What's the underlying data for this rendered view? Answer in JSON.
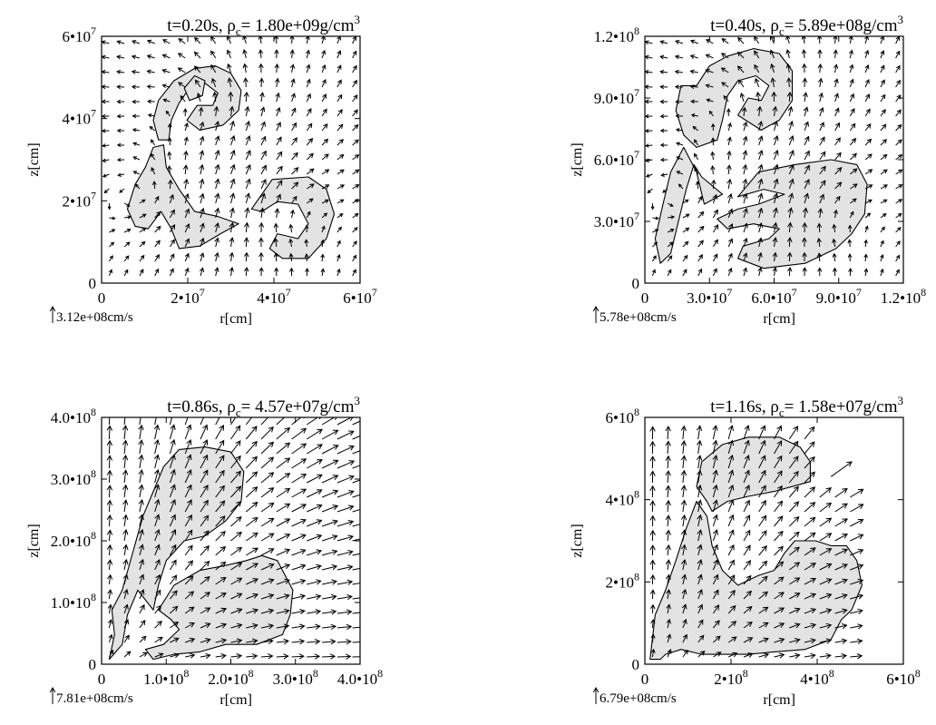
{
  "chart_data": [
    {
      "type": "scatter",
      "title": "t=0.20s, ρc= 1.80e+09g/cm3",
      "title_parts": {
        "time": "t=0.20s,",
        "rho": "ρ",
        "rho_sub": "c",
        "value": "= 1.80e+09g/cm",
        "unit_sup": "3"
      },
      "xlabel": "r[cm]",
      "ylabel": "z[cm]",
      "xlim": [
        0,
        60000000
      ],
      "ylim": [
        0,
        60000000
      ],
      "xticks": [
        {
          "v": 0,
          "label": "0"
        },
        {
          "v": 20000000,
          "label": "2•10",
          "exp": "7"
        },
        {
          "v": 40000000,
          "label": "4•10",
          "exp": "7"
        },
        {
          "v": 60000000,
          "label": "6•10",
          "exp": "7"
        }
      ],
      "yticks": [
        {
          "v": 0,
          "label": "0"
        },
        {
          "v": 20000000,
          "label": "2•10",
          "exp": "7"
        },
        {
          "v": 40000000,
          "label": "4•10",
          "exp": "7"
        },
        {
          "v": 60000000,
          "label": "6•10",
          "exp": "7"
        }
      ],
      "velocity_scale": "3.12e+08cm/s",
      "shaded_regions": [
        [
          [
            0.22,
            0.58
          ],
          [
            0.2,
            0.66
          ],
          [
            0.22,
            0.74
          ],
          [
            0.28,
            0.82
          ],
          [
            0.36,
            0.87
          ],
          [
            0.44,
            0.88
          ],
          [
            0.5,
            0.85
          ],
          [
            0.54,
            0.78
          ],
          [
            0.53,
            0.7
          ],
          [
            0.47,
            0.64
          ],
          [
            0.38,
            0.62
          ],
          [
            0.33,
            0.66
          ],
          [
            0.37,
            0.72
          ],
          [
            0.43,
            0.72
          ],
          [
            0.45,
            0.77
          ],
          [
            0.4,
            0.81
          ],
          [
            0.34,
            0.79
          ],
          [
            0.3,
            0.73
          ],
          [
            0.27,
            0.66
          ],
          [
            0.26,
            0.58
          ]
        ],
        [
          [
            0.34,
            0.74
          ],
          [
            0.32,
            0.79
          ],
          [
            0.36,
            0.84
          ],
          [
            0.4,
            0.82
          ],
          [
            0.39,
            0.76
          ]
        ],
        [
          [
            0.2,
            0.55
          ],
          [
            0.17,
            0.47
          ],
          [
            0.13,
            0.4
          ],
          [
            0.1,
            0.3
          ],
          [
            0.13,
            0.23
          ],
          [
            0.18,
            0.22
          ],
          [
            0.23,
            0.29
          ],
          [
            0.27,
            0.22
          ],
          [
            0.3,
            0.14
          ],
          [
            0.38,
            0.15
          ],
          [
            0.46,
            0.2
          ],
          [
            0.53,
            0.24
          ],
          [
            0.45,
            0.27
          ],
          [
            0.36,
            0.29
          ],
          [
            0.3,
            0.38
          ],
          [
            0.25,
            0.47
          ],
          [
            0.24,
            0.56
          ]
        ],
        [
          [
            0.58,
            0.3
          ],
          [
            0.66,
            0.42
          ],
          [
            0.8,
            0.43
          ],
          [
            0.87,
            0.38
          ],
          [
            0.9,
            0.28
          ],
          [
            0.87,
            0.18
          ],
          [
            0.8,
            0.1
          ],
          [
            0.7,
            0.1
          ],
          [
            0.65,
            0.14
          ],
          [
            0.68,
            0.2
          ],
          [
            0.76,
            0.18
          ],
          [
            0.8,
            0.24
          ],
          [
            0.76,
            0.32
          ],
          [
            0.68,
            0.33
          ],
          [
            0.62,
            0.29
          ]
        ]
      ],
      "field": "swirl"
    },
    {
      "type": "scatter",
      "title": "t=0.40s, ρc= 5.89e+08g/cm3",
      "title_parts": {
        "time": "t=0.40s,",
        "rho": "ρ",
        "rho_sub": "c",
        "value": "= 5.89e+08g/cm",
        "unit_sup": "3"
      },
      "xlabel": "r[cm]",
      "ylabel": "z[cm]",
      "xlim": [
        0,
        120000000
      ],
      "ylim": [
        0,
        120000000
      ],
      "xticks": [
        {
          "v": 0,
          "label": "0"
        },
        {
          "v": 30000000,
          "label": "3.0•10",
          "exp": "7"
        },
        {
          "v": 60000000,
          "label": "6.0•10",
          "exp": "7"
        },
        {
          "v": 90000000,
          "label": "9.0•10",
          "exp": "7"
        },
        {
          "v": 120000000,
          "label": "1.2•10",
          "exp": "8"
        }
      ],
      "yticks": [
        {
          "v": 0,
          "label": "0"
        },
        {
          "v": 30000000,
          "label": "3.0•10",
          "exp": "7"
        },
        {
          "v": 60000000,
          "label": "6.0•10",
          "exp": "7"
        },
        {
          "v": 90000000,
          "label": "9.0•10",
          "exp": "7"
        },
        {
          "v": 120000000,
          "label": "1.2•10",
          "exp": "8"
        }
      ],
      "velocity_scale": "5.78e+08cm/s",
      "shaded_regions": [
        [
          [
            0.2,
            0.55
          ],
          [
            0.15,
            0.6
          ],
          [
            0.12,
            0.7
          ],
          [
            0.14,
            0.8
          ],
          [
            0.2,
            0.8
          ],
          [
            0.25,
            0.88
          ],
          [
            0.32,
            0.92
          ],
          [
            0.42,
            0.95
          ],
          [
            0.52,
            0.93
          ],
          [
            0.57,
            0.86
          ],
          [
            0.57,
            0.74
          ],
          [
            0.52,
            0.66
          ],
          [
            0.45,
            0.62
          ],
          [
            0.36,
            0.68
          ],
          [
            0.4,
            0.75
          ],
          [
            0.45,
            0.74
          ],
          [
            0.48,
            0.8
          ],
          [
            0.43,
            0.84
          ],
          [
            0.36,
            0.82
          ],
          [
            0.32,
            0.76
          ],
          [
            0.3,
            0.66
          ],
          [
            0.28,
            0.58
          ]
        ],
        [
          [
            0.15,
            0.55
          ],
          [
            0.1,
            0.45
          ],
          [
            0.07,
            0.32
          ],
          [
            0.04,
            0.18
          ],
          [
            0.06,
            0.08
          ],
          [
            0.1,
            0.12
          ],
          [
            0.13,
            0.25
          ],
          [
            0.16,
            0.38
          ],
          [
            0.19,
            0.48
          ],
          [
            0.22,
            0.43
          ],
          [
            0.3,
            0.36
          ],
          [
            0.23,
            0.32
          ],
          [
            0.2,
            0.45
          ]
        ],
        [
          [
            0.36,
            0.35
          ],
          [
            0.44,
            0.45
          ],
          [
            0.58,
            0.48
          ],
          [
            0.72,
            0.5
          ],
          [
            0.82,
            0.48
          ],
          [
            0.86,
            0.4
          ],
          [
            0.85,
            0.28
          ],
          [
            0.8,
            0.2
          ],
          [
            0.74,
            0.14
          ],
          [
            0.62,
            0.08
          ],
          [
            0.46,
            0.06
          ],
          [
            0.36,
            0.1
          ],
          [
            0.38,
            0.15
          ],
          [
            0.48,
            0.18
          ],
          [
            0.52,
            0.22
          ],
          [
            0.42,
            0.24
          ],
          [
            0.32,
            0.22
          ],
          [
            0.28,
            0.26
          ],
          [
            0.36,
            0.3
          ],
          [
            0.44,
            0.32
          ],
          [
            0.54,
            0.36
          ],
          [
            0.46,
            0.38
          ]
        ]
      ],
      "field": "swirl"
    },
    {
      "type": "scatter",
      "title": "t=0.86s, ρc= 4.57e+07g/cm3",
      "title_parts": {
        "time": "t=0.86s,",
        "rho": "ρ",
        "rho_sub": "c",
        "value": "= 4.57e+07g/cm",
        "unit_sup": "3"
      },
      "xlabel": "r[cm]",
      "ylabel": "z[cm]",
      "xlim": [
        0,
        400000000
      ],
      "ylim": [
        0,
        400000000
      ],
      "xticks": [
        {
          "v": 0,
          "label": "0"
        },
        {
          "v": 100000000,
          "label": "1.0•10",
          "exp": "8"
        },
        {
          "v": 200000000,
          "label": "2.0•10",
          "exp": "8"
        },
        {
          "v": 300000000,
          "label": "3.0•10",
          "exp": "8"
        },
        {
          "v": 400000000,
          "label": "4.0•10",
          "exp": "8"
        }
      ],
      "yticks": [
        {
          "v": 0,
          "label": "0"
        },
        {
          "v": 100000000,
          "label": "1.0•10",
          "exp": "8"
        },
        {
          "v": 200000000,
          "label": "2.0•10",
          "exp": "8"
        },
        {
          "v": 300000000,
          "label": "3.0•10",
          "exp": "8"
        },
        {
          "v": 400000000,
          "label": "4.0•10",
          "exp": "8"
        }
      ],
      "velocity_scale": "7.81e+08cm/s",
      "shaded_regions": [
        [
          [
            0.03,
            0.02
          ],
          [
            0.05,
            0.12
          ],
          [
            0.04,
            0.22
          ],
          [
            0.08,
            0.3
          ],
          [
            0.12,
            0.45
          ],
          [
            0.16,
            0.6
          ],
          [
            0.2,
            0.7
          ],
          [
            0.24,
            0.8
          ],
          [
            0.3,
            0.87
          ],
          [
            0.4,
            0.88
          ],
          [
            0.5,
            0.86
          ],
          [
            0.55,
            0.78
          ],
          [
            0.54,
            0.66
          ],
          [
            0.48,
            0.58
          ],
          [
            0.4,
            0.52
          ],
          [
            0.32,
            0.5
          ],
          [
            0.25,
            0.42
          ],
          [
            0.22,
            0.32
          ],
          [
            0.2,
            0.22
          ],
          [
            0.14,
            0.3
          ],
          [
            0.1,
            0.2
          ],
          [
            0.08,
            0.08
          ]
        ],
        [
          [
            0.22,
            0.22
          ],
          [
            0.28,
            0.32
          ],
          [
            0.38,
            0.38
          ],
          [
            0.48,
            0.4
          ],
          [
            0.56,
            0.42
          ],
          [
            0.62,
            0.44
          ],
          [
            0.68,
            0.42
          ],
          [
            0.74,
            0.3
          ],
          [
            0.73,
            0.2
          ],
          [
            0.7,
            0.12
          ],
          [
            0.6,
            0.08
          ],
          [
            0.48,
            0.08
          ],
          [
            0.38,
            0.05
          ],
          [
            0.28,
            0.04
          ],
          [
            0.2,
            0.02
          ],
          [
            0.17,
            0.06
          ],
          [
            0.24,
            0.08
          ],
          [
            0.3,
            0.14
          ],
          [
            0.27,
            0.18
          ]
        ]
      ],
      "field": "outflow"
    },
    {
      "type": "scatter",
      "title": "t=1.16s, ρc= 1.58e+07g/cm3",
      "title_parts": {
        "time": "t=1.16s,",
        "rho": "ρ",
        "rho_sub": "c",
        "value": "= 1.58e+07g/cm",
        "unit_sup": "3"
      },
      "xlabel": "r[cm]",
      "ylabel": "z[cm]",
      "xlim": [
        0,
        600000000
      ],
      "ylim": [
        0,
        600000000
      ],
      "xticks": [
        {
          "v": 0,
          "label": "0"
        },
        {
          "v": 200000000,
          "label": "2•10",
          "exp": "8"
        },
        {
          "v": 400000000,
          "label": "4•10",
          "exp": "8"
        },
        {
          "v": 600000000,
          "label": "6•10",
          "exp": "8"
        }
      ],
      "yticks": [
        {
          "v": 0,
          "label": "0"
        },
        {
          "v": 200000000,
          "label": "2•10",
          "exp": "8"
        },
        {
          "v": 400000000,
          "label": "4•10",
          "exp": "8"
        },
        {
          "v": 600000000,
          "label": "6•10",
          "exp": "8"
        }
      ],
      "velocity_scale": "6.79e+08cm/s",
      "shaded_regions": [
        [
          [
            0.2,
            0.72
          ],
          [
            0.22,
            0.82
          ],
          [
            0.3,
            0.89
          ],
          [
            0.4,
            0.92
          ],
          [
            0.52,
            0.92
          ],
          [
            0.6,
            0.88
          ],
          [
            0.64,
            0.82
          ],
          [
            0.64,
            0.74
          ],
          [
            0.5,
            0.7
          ],
          [
            0.4,
            0.68
          ],
          [
            0.32,
            0.66
          ],
          [
            0.26,
            0.62
          ],
          [
            0.24,
            0.66
          ]
        ],
        [
          [
            0.02,
            0.02
          ],
          [
            0.04,
            0.2
          ],
          [
            0.08,
            0.3
          ],
          [
            0.12,
            0.42
          ],
          [
            0.16,
            0.55
          ],
          [
            0.2,
            0.66
          ],
          [
            0.24,
            0.6
          ],
          [
            0.26,
            0.48
          ],
          [
            0.3,
            0.38
          ],
          [
            0.36,
            0.32
          ],
          [
            0.44,
            0.36
          ],
          [
            0.5,
            0.38
          ],
          [
            0.54,
            0.45
          ],
          [
            0.58,
            0.5
          ],
          [
            0.66,
            0.5
          ],
          [
            0.72,
            0.48
          ],
          [
            0.78,
            0.48
          ],
          [
            0.82,
            0.42
          ],
          [
            0.84,
            0.32
          ],
          [
            0.8,
            0.22
          ],
          [
            0.76,
            0.18
          ],
          [
            0.72,
            0.1
          ],
          [
            0.62,
            0.06
          ],
          [
            0.5,
            0.05
          ],
          [
            0.4,
            0.04
          ],
          [
            0.3,
            0.04
          ],
          [
            0.22,
            0.04
          ],
          [
            0.14,
            0.06
          ],
          [
            0.08,
            0.04
          ],
          [
            0.06,
            0.02
          ]
        ]
      ],
      "field": "partial"
    }
  ]
}
